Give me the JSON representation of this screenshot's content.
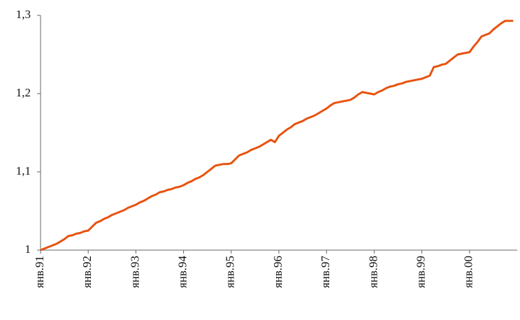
{
  "chart_data": {
    "type": "line",
    "categories": [
      "янв.91",
      null,
      null,
      null,
      null,
      null,
      null,
      null,
      null,
      null,
      null,
      null,
      "янв.92",
      null,
      null,
      null,
      null,
      null,
      null,
      null,
      null,
      null,
      null,
      null,
      "янв.93",
      null,
      null,
      null,
      null,
      null,
      null,
      null,
      null,
      null,
      null,
      null,
      "янв.94",
      null,
      null,
      null,
      null,
      null,
      null,
      null,
      null,
      null,
      null,
      null,
      "янв.95",
      null,
      null,
      null,
      null,
      null,
      null,
      null,
      null,
      null,
      null,
      null,
      "янв.96",
      null,
      null,
      null,
      null,
      null,
      null,
      null,
      null,
      null,
      null,
      null,
      "янв.97",
      null,
      null,
      null,
      null,
      null,
      null,
      null,
      null,
      null,
      null,
      null,
      "янв.98",
      null,
      null,
      null,
      null,
      null,
      null,
      null,
      null,
      null,
      null,
      null,
      "янв.99",
      null,
      null,
      null,
      null,
      null,
      null,
      null,
      null,
      null,
      null,
      null,
      "янв.00",
      null,
      null,
      null,
      null,
      null,
      null,
      null,
      null,
      null,
      null,
      null
    ],
    "values": [
      1.0,
      1.002,
      1.004,
      1.006,
      1.008,
      1.011,
      1.014,
      1.018,
      1.019,
      1.021,
      1.022,
      1.024,
      1.025,
      1.03,
      1.035,
      1.037,
      1.04,
      1.042,
      1.045,
      1.047,
      1.049,
      1.051,
      1.054,
      1.056,
      1.058,
      1.061,
      1.063,
      1.066,
      1.069,
      1.071,
      1.074,
      1.075,
      1.077,
      1.078,
      1.08,
      1.081,
      1.083,
      1.086,
      1.088,
      1.091,
      1.093,
      1.096,
      1.1,
      1.104,
      1.108,
      1.109,
      1.11,
      1.11,
      1.111,
      1.116,
      1.121,
      1.123,
      1.125,
      1.128,
      1.13,
      1.132,
      1.135,
      1.138,
      1.141,
      1.138,
      1.146,
      1.15,
      1.154,
      1.157,
      1.161,
      1.163,
      1.165,
      1.168,
      1.17,
      1.172,
      1.175,
      1.178,
      1.181,
      1.185,
      1.188,
      1.189,
      1.19,
      1.191,
      1.192,
      1.195,
      1.199,
      1.202,
      1.201,
      1.2,
      1.199,
      1.202,
      1.204,
      1.207,
      1.209,
      1.21,
      1.212,
      1.213,
      1.215,
      1.216,
      1.217,
      1.218,
      1.219,
      1.221,
      1.223,
      1.234,
      1.235,
      1.237,
      1.238,
      1.242,
      1.246,
      1.25,
      1.251,
      1.252,
      1.253,
      1.26,
      1.266,
      1.273,
      1.275,
      1.277,
      1.282,
      1.286,
      1.29,
      1.293,
      1.293,
      1.293
    ],
    "color": "#e8520f",
    "ylim": [
      1,
      1.3
    ],
    "yticks": [
      1,
      {
        "value": 1.1,
        "label": "1,1"
      },
      {
        "value": 1.2,
        "label": "1,2"
      },
      {
        "value": 1.3,
        "label": "1,3"
      }
    ],
    "grid": false
  }
}
